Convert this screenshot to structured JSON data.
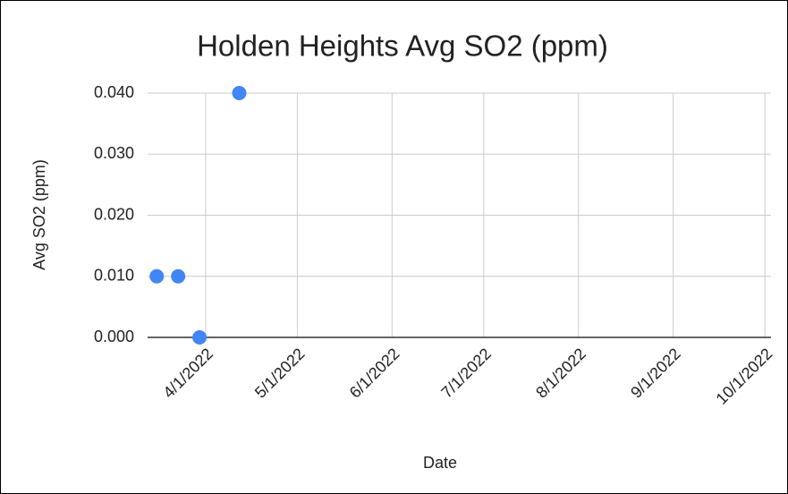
{
  "chart_data": {
    "type": "scatter",
    "title": "Holden Heights Avg SO2 (ppm)",
    "x_label": "Date",
    "y_label": "Avg SO2 (ppm)",
    "x": [
      "2022-03-16",
      "2022-03-23",
      "2022-03-30",
      "2022-04-12"
    ],
    "series": [
      {
        "name": "Avg SO2 (ppm)",
        "color": "#4285f4",
        "values": [
          0.01,
          0.01,
          0,
          0.04
        ]
      }
    ],
    "xlim": [
      "2022-03-13",
      "2022-10-03"
    ],
    "xticks": [
      {
        "value": "2022-04-01",
        "label": "4/1/2022"
      },
      {
        "value": "2022-05-01",
        "label": "5/1/2022"
      },
      {
        "value": "2022-06-01",
        "label": "6/1/2022"
      },
      {
        "value": "2022-07-01",
        "label": "7/1/2022"
      },
      {
        "value": "2022-08-01",
        "label": "8/1/2022"
      },
      {
        "value": "2022-09-01",
        "label": "9/1/2022"
      },
      {
        "value": "2022-10-01",
        "label": "10/1/2022"
      }
    ],
    "ylim": [
      0,
      0.04
    ],
    "yticks": [
      {
        "value": 0,
        "label": "0.000"
      },
      {
        "value": 0.01,
        "label": "0.010"
      },
      {
        "value": 0.02,
        "label": "0.020"
      },
      {
        "value": 0.03,
        "label": "0.030"
      },
      {
        "value": 0.04,
        "label": "0.040"
      }
    ],
    "grid": true
  }
}
